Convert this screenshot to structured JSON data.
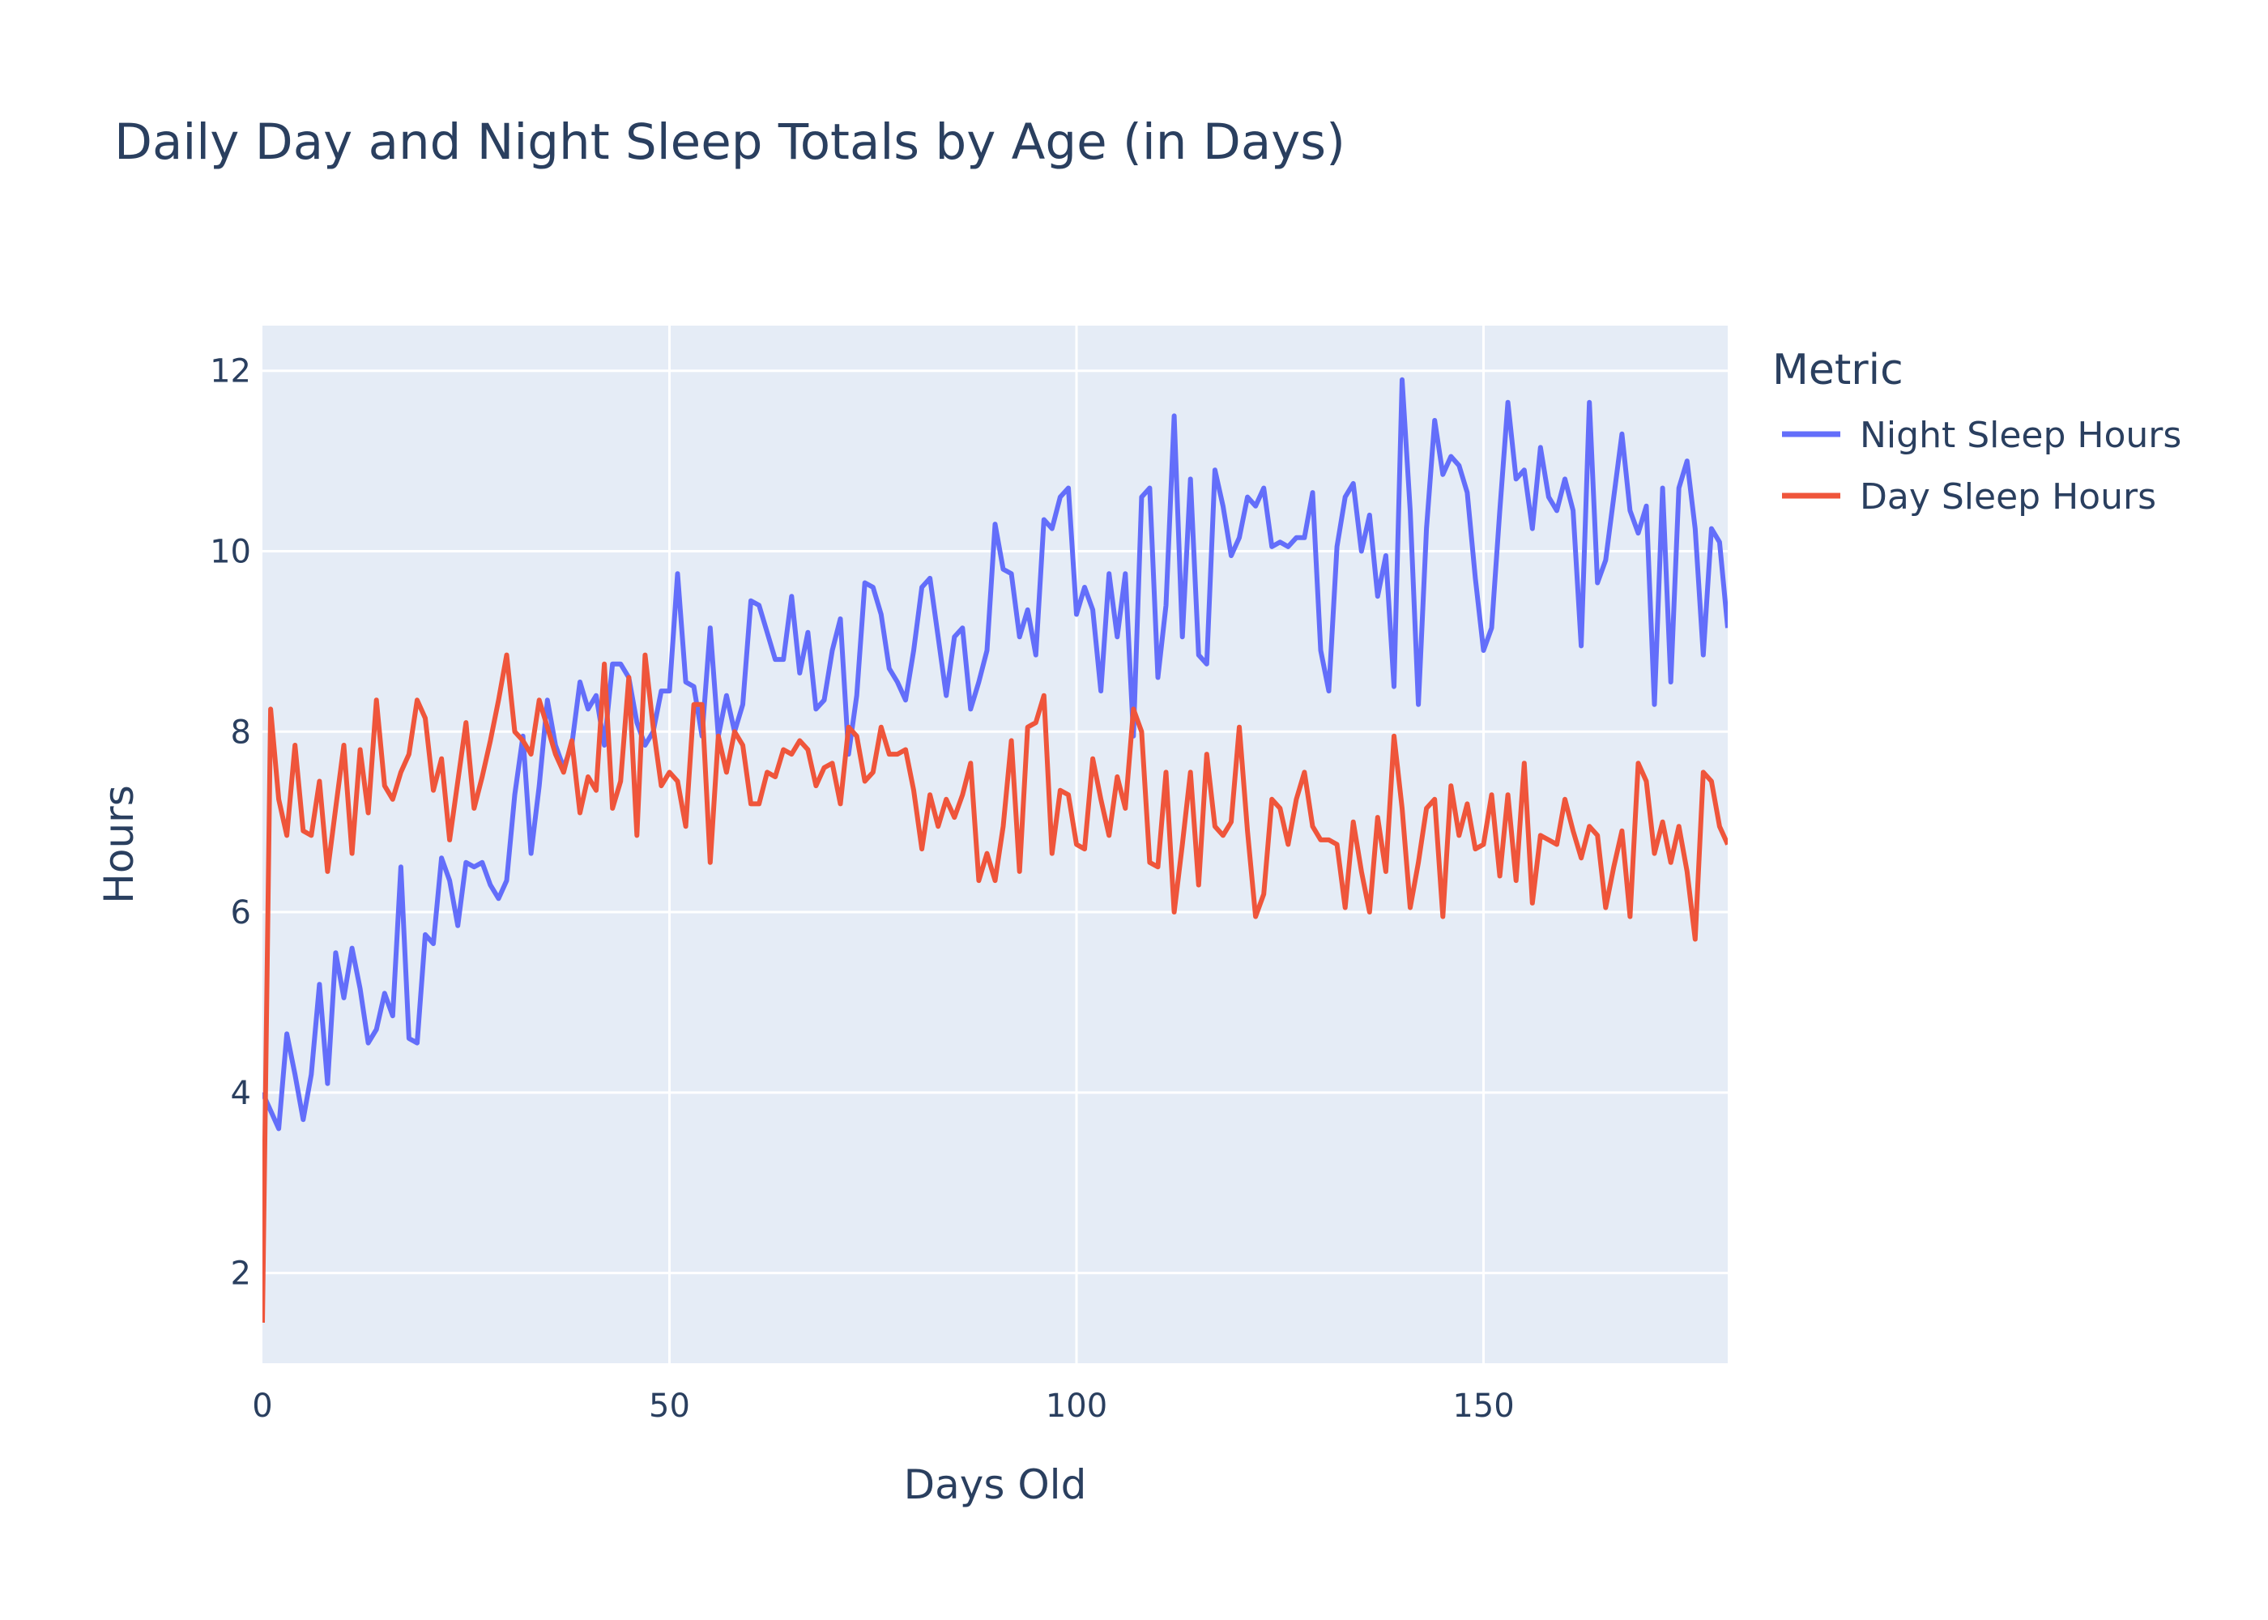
{
  "chart_data": {
    "type": "line",
    "title": "Daily Day and Night Sleep Totals by Age (in Days)",
    "xlabel": "Days Old",
    "ylabel": "Hours",
    "xlim": [
      0,
      180
    ],
    "ylim": [
      1,
      12.5
    ],
    "xticks": [
      0,
      50,
      100,
      150
    ],
    "yticks": [
      2,
      4,
      6,
      8,
      10,
      12
    ],
    "grid": true,
    "legend": {
      "title": "Metric",
      "placement": "top-right-outside"
    },
    "x": [
      0,
      1,
      2,
      3,
      4,
      5,
      6,
      7,
      8,
      9,
      10,
      11,
      12,
      13,
      14,
      15,
      16,
      17,
      18,
      19,
      20,
      21,
      22,
      23,
      24,
      25,
      26,
      27,
      28,
      29,
      30,
      31,
      32,
      33,
      34,
      35,
      36,
      37,
      38,
      39,
      40,
      41,
      42,
      43,
      44,
      45,
      46,
      47,
      48,
      49,
      50,
      51,
      52,
      53,
      54,
      55,
      56,
      57,
      58,
      59,
      60,
      61,
      62,
      63,
      64,
      65,
      66,
      67,
      68,
      69,
      70,
      71,
      72,
      73,
      74,
      75,
      76,
      77,
      78,
      79,
      80,
      81,
      82,
      83,
      84,
      85,
      86,
      87,
      88,
      89,
      90,
      91,
      92,
      93,
      94,
      95,
      96,
      97,
      98,
      99,
      100,
      101,
      102,
      103,
      104,
      105,
      106,
      107,
      108,
      109,
      110,
      111,
      112,
      113,
      114,
      115,
      116,
      117,
      118,
      119,
      120,
      121,
      122,
      123,
      124,
      125,
      126,
      127,
      128,
      129,
      130,
      131,
      132,
      133,
      134,
      135,
      136,
      137,
      138,
      139,
      140,
      141,
      142,
      143,
      144,
      145,
      146,
      147,
      148,
      149,
      150,
      151,
      152,
      153,
      154,
      155,
      156,
      157,
      158,
      159,
      160,
      161,
      162,
      163,
      164,
      165,
      166,
      167,
      168,
      169,
      170,
      171,
      172,
      173,
      174,
      175,
      176,
      177,
      178,
      179,
      180
    ],
    "series": [
      {
        "name": "Night Sleep Hours",
        "color": "#636efa",
        "values": [
          4.0,
          3.8,
          3.6,
          4.65,
          4.2,
          3.7,
          4.2,
          5.2,
          4.1,
          5.55,
          5.05,
          5.6,
          5.15,
          4.55,
          4.7,
          5.1,
          4.85,
          6.5,
          4.6,
          4.55,
          5.75,
          5.65,
          6.6,
          6.35,
          5.85,
          6.55,
          6.5,
          6.55,
          6.3,
          6.15,
          6.35,
          7.3,
          7.95,
          6.65,
          7.4,
          8.35,
          7.85,
          7.6,
          7.85,
          8.55,
          8.25,
          8.4,
          7.85,
          8.75,
          8.75,
          8.6,
          8.1,
          7.85,
          8.0,
          8.45,
          8.45,
          9.75,
          8.55,
          8.5,
          7.95,
          9.15,
          7.95,
          8.4,
          8.0,
          8.3,
          9.45,
          9.4,
          9.1,
          8.8,
          8.8,
          9.5,
          8.65,
          9.1,
          8.25,
          8.35,
          8.9,
          9.25,
          7.75,
          8.4,
          9.65,
          9.6,
          9.3,
          8.7,
          8.55,
          8.35,
          8.9,
          9.6,
          9.7,
          9.05,
          8.4,
          9.05,
          9.15,
          8.25,
          8.55,
          8.9,
          10.3,
          9.8,
          9.75,
          9.05,
          9.35,
          8.85,
          10.35,
          10.25,
          10.6,
          10.7,
          9.3,
          9.6,
          9.35,
          8.45,
          9.75,
          9.05,
          9.75,
          7.95,
          10.6,
          10.7,
          8.6,
          9.4,
          11.5,
          9.05,
          10.8,
          8.85,
          8.75,
          10.9,
          10.5,
          9.95,
          10.15,
          10.6,
          10.5,
          10.7,
          10.05,
          10.1,
          10.05,
          10.15,
          10.15,
          10.65,
          8.9,
          8.45,
          10.05,
          10.6,
          10.75,
          10.0,
          10.4,
          9.5,
          9.95,
          8.5,
          11.9,
          10.45,
          8.3,
          10.25,
          11.45,
          10.85,
          11.05,
          10.95,
          10.65,
          9.7,
          8.9,
          9.15,
          10.45,
          11.65,
          10.8,
          10.9,
          10.25,
          11.15,
          10.6,
          10.45,
          10.8,
          10.45,
          8.95,
          11.65,
          9.65,
          9.9,
          10.6,
          11.3,
          10.45,
          10.2,
          10.5,
          8.3,
          10.7,
          8.55,
          10.7,
          11.0,
          10.25,
          8.85,
          10.25,
          10.1,
          9.15
        ]
      },
      {
        "name": "Day Sleep Hours",
        "color": "#ef553b",
        "values": [
          1.45,
          8.25,
          7.25,
          6.85,
          7.85,
          6.9,
          6.85,
          7.45,
          6.45,
          7.15,
          7.85,
          6.65,
          7.8,
          7.1,
          8.35,
          7.4,
          7.25,
          7.55,
          7.75,
          8.35,
          8.15,
          7.35,
          7.7,
          6.8,
          7.45,
          8.1,
          7.15,
          7.5,
          7.9,
          8.35,
          8.85,
          8.0,
          7.9,
          7.75,
          8.35,
          8.05,
          7.75,
          7.55,
          7.9,
          7.1,
          7.5,
          7.35,
          8.75,
          7.15,
          7.45,
          8.6,
          6.85,
          8.85,
          8.05,
          7.4,
          7.55,
          7.45,
          6.95,
          8.3,
          8.3,
          6.55,
          7.95,
          7.55,
          8.0,
          7.85,
          7.2,
          7.2,
          7.55,
          7.5,
          7.8,
          7.75,
          7.9,
          7.8,
          7.4,
          7.6,
          7.65,
          7.2,
          8.05,
          7.95,
          7.45,
          7.55,
          8.05,
          7.75,
          7.75,
          7.8,
          7.35,
          6.7,
          7.3,
          6.95,
          7.25,
          7.05,
          7.3,
          7.65,
          6.35,
          6.65,
          6.35,
          6.95,
          7.9,
          6.45,
          8.05,
          8.1,
          8.4,
          6.65,
          7.35,
          7.3,
          6.75,
          6.7,
          7.7,
          7.25,
          6.85,
          7.5,
          7.15,
          8.25,
          8.0,
          6.55,
          6.5,
          7.55,
          6.0,
          6.75,
          7.55,
          6.3,
          7.75,
          6.95,
          6.85,
          7.0,
          8.05,
          6.9,
          5.95,
          6.2,
          7.25,
          7.15,
          6.75,
          7.25,
          7.55,
          6.95,
          6.8,
          6.8,
          6.75,
          6.05,
          7.0,
          6.45,
          6.0,
          7.05,
          6.45,
          7.95,
          7.15,
          6.05,
          6.55,
          7.15,
          7.25,
          5.95,
          7.4,
          6.85,
          7.2,
          6.7,
          6.75,
          7.3,
          6.4,
          7.3,
          6.35,
          7.65,
          6.1,
          6.85,
          6.8,
          6.75,
          7.25,
          6.9,
          6.6,
          6.95,
          6.85,
          6.05,
          6.5,
          6.9,
          5.95,
          7.65,
          7.45,
          6.65,
          7.0,
          6.55,
          6.95,
          6.45,
          5.7,
          7.55,
          7.45,
          6.95,
          6.75
        ]
      }
    ]
  }
}
